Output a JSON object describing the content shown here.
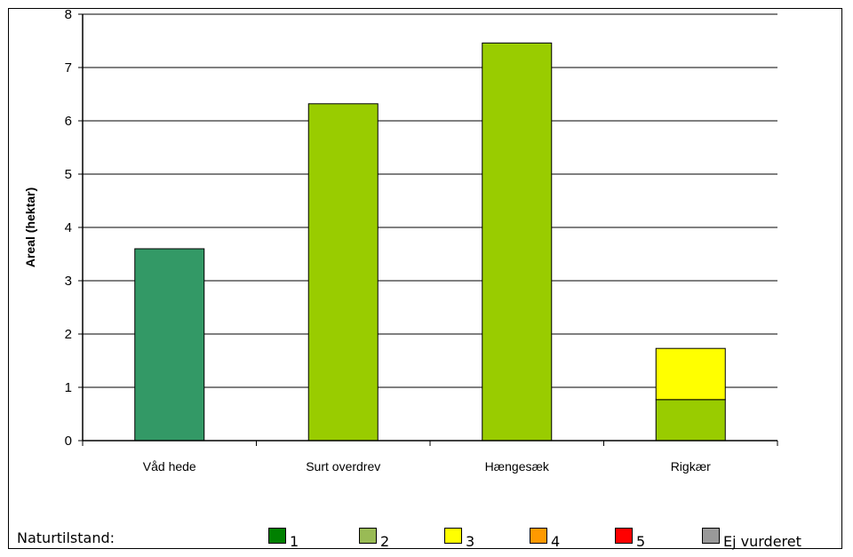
{
  "chart_data": {
    "type": "bar",
    "stacked": true,
    "categories": [
      "Våd hede",
      "Surt overdrev",
      "Hængesæk",
      "Rigkær"
    ],
    "series": [
      {
        "values": [
          3.6,
          0,
          0,
          0
        ],
        "color": "#339966"
      },
      {
        "values": [
          0,
          6.32,
          7.46,
          0.77
        ],
        "color": "#99cc00"
      },
      {
        "values": [
          0,
          0,
          0,
          0.96
        ],
        "color": "#ffff00"
      }
    ],
    "ylabel": "Areal (hektar)",
    "ylim": [
      0,
      8
    ],
    "yticks": [
      "0",
      "1",
      "2",
      "3",
      "4",
      "5",
      "6",
      "7",
      "8"
    ],
    "grid": true
  },
  "legend": {
    "title": "Naturtilstand:",
    "items": [
      {
        "label": "1",
        "color": "#008000"
      },
      {
        "label": "2",
        "color": "#99bb55"
      },
      {
        "label": "3",
        "color": "#ffff00"
      },
      {
        "label": "4",
        "color": "#ff9900"
      },
      {
        "label": "5",
        "color": "#ff0000"
      },
      {
        "label": "Ej vurderet",
        "color": "#999999"
      }
    ]
  }
}
